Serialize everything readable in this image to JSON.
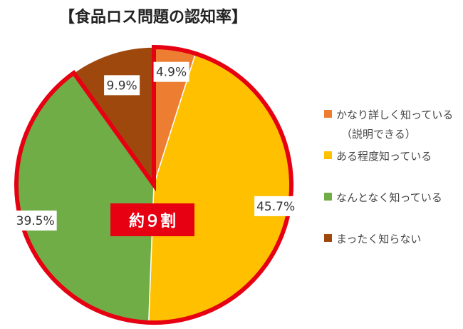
{
  "chart_data": {
    "type": "pie",
    "title": "【食品ロス問題の認知率】",
    "categories": [
      "かなり詳しく知っている",
      "ある程度知っている",
      "なんとなく知っている",
      "まったく知らない"
    ],
    "category_sublabels": [
      "（説明できる）",
      "",
      "",
      ""
    ],
    "values": [
      4.9,
      45.7,
      39.5,
      9.9
    ],
    "data_labels": [
      "4.9%",
      "45.7%",
      "39.5%",
      "9.9%"
    ],
    "colors": [
      "#ED7D31",
      "#FFC000",
      "#70AD47",
      "#9E480E"
    ],
    "legend_position": "right",
    "start_angle": "12 o'clock, clockwise",
    "highlight": {
      "label": "約９割",
      "slices": [
        0,
        1,
        2
      ],
      "color": "#E60012"
    }
  }
}
